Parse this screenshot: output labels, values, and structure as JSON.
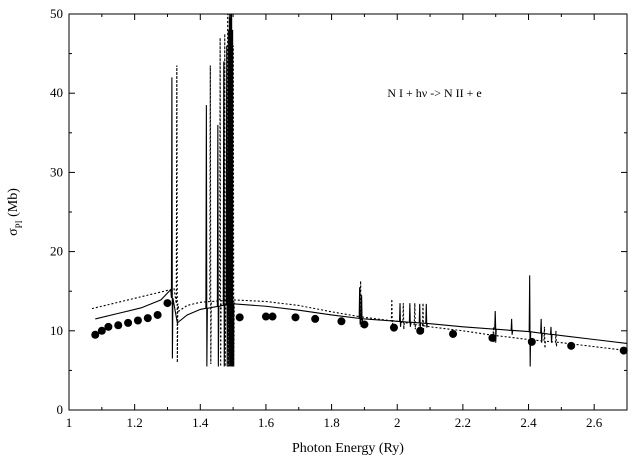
{
  "chart_data": {
    "type": "line",
    "title": "",
    "xlabel": "Photon Energy (Ry)",
    "ylabel": "σPI (Mb)",
    "ylabel_main": "σ",
    "ylabel_sub": "PI",
    "ylabel_unit": " (Mb)",
    "xlim": [
      1.0,
      2.7
    ],
    "ylim": [
      0,
      50
    ],
    "x_ticks": [
      1,
      1.2,
      1.4,
      1.6,
      1.8,
      2,
      2.2,
      2.4,
      2.6
    ],
    "x_tick_labels": [
      "1",
      "1.2",
      "1.4",
      "1.6",
      "1.8",
      "2",
      "2.2",
      "2.4",
      "2.6"
    ],
    "y_ticks": [
      0,
      10,
      20,
      30,
      40,
      50
    ],
    "y_tick_labels": [
      "0",
      "10",
      "20",
      "30",
      "40",
      "50"
    ],
    "grid": false,
    "annotations": [
      {
        "text": "N I + hν -> N II + e",
        "x": 1.97,
        "y": 40
      }
    ],
    "series": [
      {
        "style": "solid",
        "background": [
          [
            1.08,
            11.5
          ],
          [
            1.15,
            12.2
          ],
          [
            1.22,
            12.9
          ],
          [
            1.28,
            13.9
          ],
          [
            1.31,
            15.2
          ],
          [
            1.33,
            11.0
          ],
          [
            1.36,
            12.0
          ],
          [
            1.4,
            12.7
          ],
          [
            1.5,
            13.4
          ],
          [
            1.6,
            13.1
          ],
          [
            1.7,
            12.6
          ],
          [
            1.8,
            12.0
          ],
          [
            1.9,
            11.5
          ],
          [
            2.0,
            11.2
          ],
          [
            2.1,
            10.9
          ],
          [
            2.2,
            10.5
          ],
          [
            2.3,
            10.2
          ],
          [
            2.4,
            9.9
          ],
          [
            2.5,
            9.4
          ],
          [
            2.6,
            8.9
          ],
          [
            2.7,
            8.4
          ]
        ],
        "resonances": [
          {
            "x": 1.315,
            "peak": 42,
            "dip": 6.5
          },
          {
            "x": 1.42,
            "peak": 38.5,
            "dip": 5.5
          },
          {
            "x": 1.455,
            "peak": 36,
            "dip": 5.5
          },
          {
            "x": 1.473,
            "peak": 44,
            "dip": 5.5
          },
          {
            "x": 1.482,
            "peak": 46,
            "dip": 5.5
          },
          {
            "x": 1.487,
            "peak": 48,
            "dip": 5.5
          },
          {
            "x": 1.491,
            "peak": 49.5,
            "dip": 5.5
          },
          {
            "x": 1.494,
            "peak": 50,
            "dip": 5.5
          },
          {
            "x": 1.497,
            "peak": 50,
            "dip": 5.5
          },
          {
            "x": 1.5,
            "peak": 48,
            "dip": 5.5
          },
          {
            "x": 1.887,
            "peak": 15.5,
            "dip": 10.8
          },
          {
            "x": 1.893,
            "peak": 14.5,
            "dip": 11.0
          },
          {
            "x": 2.01,
            "peak": 13.5,
            "dip": 10.5
          },
          {
            "x": 2.04,
            "peak": 13.5,
            "dip": 10.5
          },
          {
            "x": 2.07,
            "peak": 13.4,
            "dip": 10.4
          },
          {
            "x": 2.09,
            "peak": 13.4,
            "dip": 10.4
          },
          {
            "x": 2.3,
            "peak": 12.5,
            "dip": 8.5
          },
          {
            "x": 2.35,
            "peak": 11.5,
            "dip": 9.5
          },
          {
            "x": 2.405,
            "peak": 17,
            "dip": 5.5
          },
          {
            "x": 2.44,
            "peak": 11.5,
            "dip": 8.5
          },
          {
            "x": 2.47,
            "peak": 10.5,
            "dip": 8.5
          }
        ]
      },
      {
        "style": "dotted",
        "background": [
          [
            1.07,
            12.8
          ],
          [
            1.15,
            13.6
          ],
          [
            1.22,
            14.3
          ],
          [
            1.28,
            14.9
          ],
          [
            1.32,
            15.3
          ],
          [
            1.335,
            12.5
          ],
          [
            1.36,
            13.2
          ],
          [
            1.4,
            13.6
          ],
          [
            1.5,
            13.9
          ],
          [
            1.6,
            13.7
          ],
          [
            1.7,
            13.2
          ],
          [
            1.8,
            12.4
          ],
          [
            1.9,
            11.7
          ],
          [
            2.0,
            11.2
          ],
          [
            2.1,
            10.5
          ],
          [
            2.2,
            10.0
          ],
          [
            2.3,
            9.4
          ],
          [
            2.4,
            8.9
          ],
          [
            2.5,
            8.5
          ],
          [
            2.6,
            8.0
          ],
          [
            2.7,
            7.5
          ]
        ],
        "resonances": [
          {
            "x": 1.33,
            "peak": 43.5,
            "dip": 6.0
          },
          {
            "x": 1.432,
            "peak": 43.5,
            "dip": 5.8
          },
          {
            "x": 1.462,
            "peak": 47,
            "dip": 5.5
          },
          {
            "x": 1.476,
            "peak": 47.5,
            "dip": 5.5
          },
          {
            "x": 1.485,
            "peak": 50,
            "dip": 5.5
          },
          {
            "x": 1.49,
            "peak": 50,
            "dip": 5.5
          },
          {
            "x": 1.496,
            "peak": 49,
            "dip": 5.5
          },
          {
            "x": 1.502,
            "peak": 46,
            "dip": 5.5
          },
          {
            "x": 1.89,
            "peak": 16.3,
            "dip": 10.5
          },
          {
            "x": 1.985,
            "peak": 14.0,
            "dip": 10.3
          },
          {
            "x": 2.02,
            "peak": 13.5,
            "dip": 10.2
          },
          {
            "x": 2.055,
            "peak": 13.5,
            "dip": 10.2
          },
          {
            "x": 2.08,
            "peak": 13.5,
            "dip": 10.2
          },
          {
            "x": 2.295,
            "peak": 10.5,
            "dip": 8.5
          },
          {
            "x": 2.45,
            "peak": 10.5,
            "dip": 7.8
          },
          {
            "x": 2.485,
            "peak": 10.0,
            "dip": 8.0
          }
        ]
      },
      {
        "style": "markers",
        "points": [
          [
            1.08,
            9.5
          ],
          [
            1.1,
            10.0
          ],
          [
            1.12,
            10.5
          ],
          [
            1.15,
            10.7
          ],
          [
            1.18,
            11.0
          ],
          [
            1.21,
            11.3
          ],
          [
            1.24,
            11.6
          ],
          [
            1.27,
            12.0
          ],
          [
            1.3,
            13.5
          ],
          [
            1.52,
            11.7
          ],
          [
            1.6,
            11.8
          ],
          [
            1.62,
            11.8
          ],
          [
            1.69,
            11.7
          ],
          [
            1.75,
            11.5
          ],
          [
            1.83,
            11.2
          ],
          [
            1.9,
            10.8
          ],
          [
            1.99,
            10.4
          ],
          [
            2.07,
            10.0
          ],
          [
            2.17,
            9.6
          ],
          [
            2.29,
            9.1
          ],
          [
            2.41,
            8.6
          ],
          [
            2.53,
            8.1
          ],
          [
            2.69,
            7.5
          ]
        ]
      }
    ]
  }
}
